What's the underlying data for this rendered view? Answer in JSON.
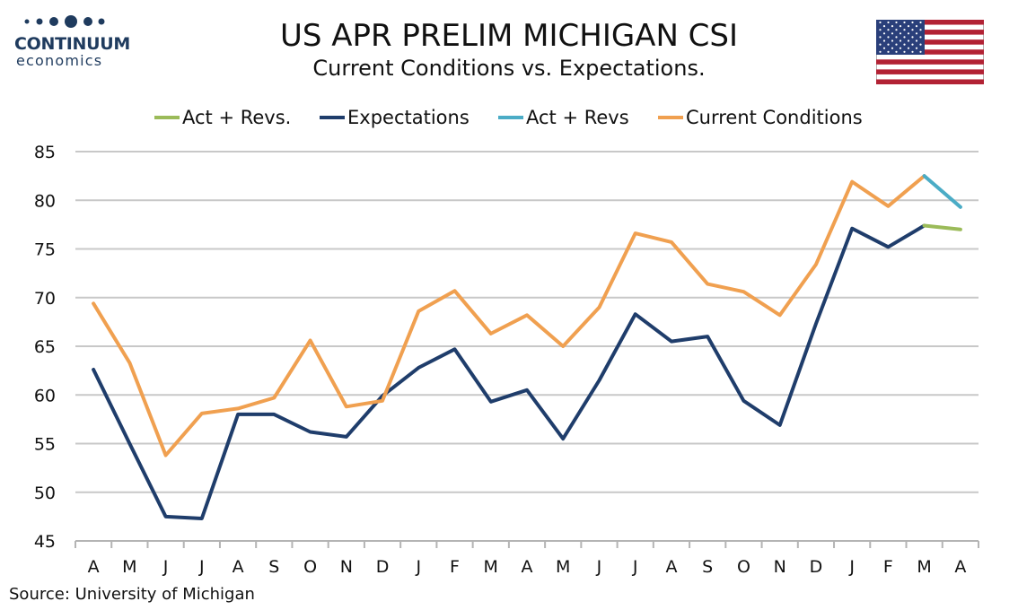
{
  "logo": {
    "brand": "CONTINUUM",
    "sub": "economics"
  },
  "header": {
    "title": "US APR PRELIM MICHIGAN CSI",
    "subtitle": "Current Conditions vs. Expectations."
  },
  "flag": {
    "name": "us-flag-icon"
  },
  "source": "Source: University of Michigan",
  "chart_data": {
    "type": "line",
    "categories": [
      "A",
      "M",
      "J",
      "J",
      "A",
      "S",
      "O",
      "N",
      "D",
      "J",
      "F",
      "M",
      "A",
      "M",
      "J",
      "J",
      "A",
      "S",
      "O",
      "N",
      "D",
      "J",
      "F",
      "M",
      "A"
    ],
    "ylim": [
      45,
      85
    ],
    "yticks": [
      45,
      50,
      55,
      60,
      65,
      70,
      75,
      80,
      85
    ],
    "grid": true,
    "legend_position": "top",
    "series": [
      {
        "name": "Act + Revs.",
        "color": "#9bbb59",
        "values": [
          null,
          null,
          null,
          null,
          null,
          null,
          null,
          null,
          null,
          null,
          null,
          null,
          null,
          null,
          null,
          null,
          null,
          null,
          null,
          null,
          null,
          null,
          null,
          77.4,
          77.0
        ]
      },
      {
        "name": "Expectations",
        "color": "#1f3d6b",
        "values": [
          62.6,
          55.0,
          47.5,
          47.3,
          58.0,
          58.0,
          56.2,
          55.7,
          59.9,
          62.8,
          64.7,
          59.3,
          60.5,
          55.5,
          61.5,
          68.3,
          65.5,
          66.0,
          59.4,
          56.9,
          67.3,
          77.1,
          75.2,
          77.4,
          null
        ]
      },
      {
        "name": "Act + Revs",
        "color": "#4bacc6",
        "values": [
          null,
          null,
          null,
          null,
          null,
          null,
          null,
          null,
          null,
          null,
          null,
          null,
          null,
          null,
          null,
          null,
          null,
          null,
          null,
          null,
          null,
          null,
          null,
          82.5,
          79.3
        ]
      },
      {
        "name": "Current Conditions",
        "color": "#f0a050",
        "values": [
          69.4,
          63.3,
          53.8,
          58.1,
          58.6,
          59.7,
          65.6,
          58.8,
          59.4,
          68.6,
          70.7,
          66.3,
          68.2,
          65.0,
          69.0,
          76.6,
          75.7,
          71.4,
          70.6,
          68.2,
          73.4,
          81.9,
          79.4,
          82.5,
          null
        ]
      }
    ]
  }
}
